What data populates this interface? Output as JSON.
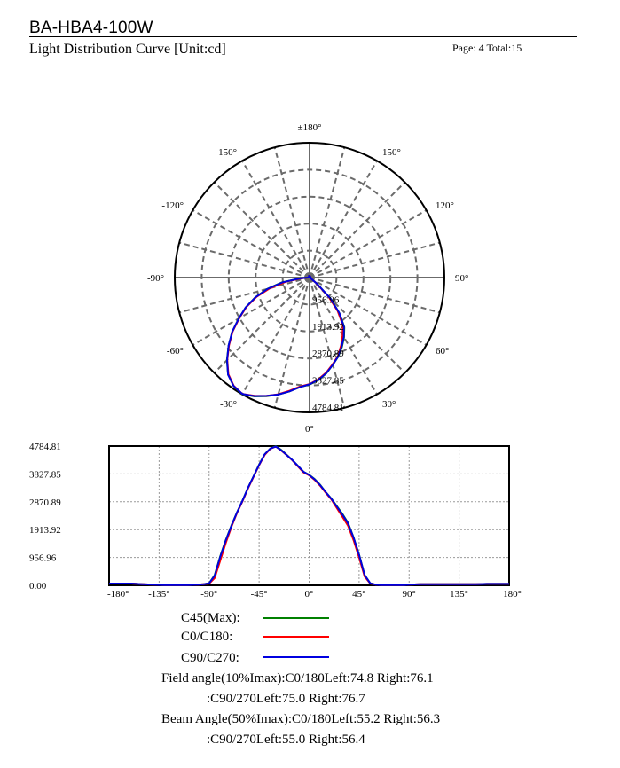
{
  "header": {
    "report_title": "BA-HBA4-100W",
    "subtitle": "Light Distribution Curve [Unit:cd]",
    "page_info": "Page: 4  Total:15"
  },
  "chart_data": [
    {
      "type": "polar",
      "title": "",
      "angle_labels": [
        {
          "angle": 180,
          "text": "±180°"
        },
        {
          "angle": 150,
          "text": "150°"
        },
        {
          "angle": 120,
          "text": "120°"
        },
        {
          "angle": 90,
          "text": "90°"
        },
        {
          "angle": 60,
          "text": "60°"
        },
        {
          "angle": 30,
          "text": "30°"
        },
        {
          "angle": 0,
          "text": "0°"
        },
        {
          "angle": -30,
          "text": "-30°"
        },
        {
          "angle": -60,
          "text": "-60°"
        },
        {
          "angle": -90,
          "text": "-90°"
        },
        {
          "angle": -120,
          "text": "-120°"
        },
        {
          "angle": -150,
          "text": "-150°"
        }
      ],
      "radial_labels": [
        "956.96",
        "1913.92",
        "2870.89",
        "3827.85",
        "4784.81"
      ],
      "rlim": [
        0,
        4784.81
      ],
      "grid": true
    },
    {
      "type": "line",
      "title": "",
      "xlabel": "",
      "ylabel": "",
      "xlim": [
        -180,
        180
      ],
      "ylim": [
        0,
        4784.81
      ],
      "x_ticks": [
        "-180°",
        "-135°",
        "-90°",
        "-45°",
        "0°",
        "45°",
        "90°",
        "135°",
        "180°"
      ],
      "x_tick_values": [
        -180,
        -135,
        -90,
        -45,
        0,
        45,
        90,
        135,
        180
      ],
      "y_ticks": [
        "4784.81",
        "3827.85",
        "2870.89",
        "1913.92",
        "956.96",
        "0.00"
      ],
      "y_tick_values": [
        4784.81,
        3827.85,
        2870.89,
        1913.92,
        956.96,
        0
      ],
      "grid": true,
      "x": [
        -180,
        -170,
        -160,
        -150,
        -140,
        -130,
        -120,
        -110,
        -100,
        -95,
        -90,
        -85,
        -80,
        -75,
        -70,
        -65,
        -60,
        -55,
        -50,
        -45,
        -40,
        -35,
        -30,
        -25,
        -20,
        -15,
        -10,
        -5,
        0,
        5,
        10,
        15,
        20,
        25,
        30,
        35,
        40,
        45,
        50,
        55,
        60,
        65,
        70,
        75,
        80,
        85,
        90,
        95,
        100,
        110,
        120,
        130,
        140,
        150,
        160,
        170,
        180
      ],
      "series": [
        {
          "name": "C45(Max):",
          "color": "#008000",
          "values": [
            60,
            60,
            60,
            40,
            20,
            10,
            10,
            10,
            20,
            40,
            70,
            350,
            1000,
            1550,
            2050,
            2500,
            2900,
            3350,
            3750,
            4150,
            4500,
            4700,
            4784.81,
            4650,
            4480,
            4300,
            4100,
            3900,
            3800,
            3650,
            3450,
            3200,
            2980,
            2720,
            2450,
            2150,
            1650,
            1050,
            350,
            70,
            20,
            10,
            10,
            10,
            10,
            10,
            20,
            30,
            40,
            40,
            40,
            40,
            40,
            40,
            50,
            50,
            50
          ]
        },
        {
          "name": "C0/C180:",
          "color": "#ff0000",
          "values": [
            60,
            60,
            60,
            40,
            20,
            10,
            10,
            10,
            20,
            40,
            60,
            250,
            850,
            1450,
            2000,
            2480,
            2880,
            3330,
            3730,
            4130,
            4480,
            4690,
            4770,
            4630,
            4470,
            4290,
            4080,
            3880,
            3780,
            3620,
            3420,
            3180,
            2950,
            2650,
            2350,
            2050,
            1550,
            950,
            300,
            60,
            20,
            10,
            10,
            10,
            10,
            10,
            20,
            30,
            40,
            40,
            40,
            40,
            40,
            40,
            50,
            50,
            50
          ]
        },
        {
          "name": "C90/C270:",
          "color": "#0000e0",
          "values": [
            60,
            60,
            60,
            40,
            20,
            10,
            10,
            10,
            20,
            40,
            70,
            330,
            980,
            1540,
            2040,
            2500,
            2900,
            3350,
            3750,
            4140,
            4500,
            4700,
            4770,
            4640,
            4470,
            4300,
            4100,
            3900,
            3790,
            3640,
            3440,
            3200,
            2970,
            2700,
            2430,
            2130,
            1640,
            1040,
            350,
            70,
            20,
            10,
            10,
            10,
            10,
            10,
            20,
            30,
            40,
            40,
            40,
            40,
            40,
            40,
            50,
            50,
            50
          ]
        }
      ]
    }
  ],
  "info": {
    "field_angle_line1": "Field angle(10%Imax):C0/180Left:74.8 Right:76.1",
    "field_angle_line2": ":C90/270Left:75.0 Right:76.7",
    "beam_angle_line1": "Beam Angle(50%Imax):C0/180Left:55.2 Right:56.3",
    "beam_angle_line2": ":C90/270Left:55.0 Right:56.4"
  }
}
